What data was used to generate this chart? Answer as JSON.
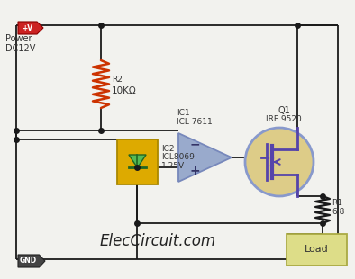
{
  "bg_color": "#f2f2ee",
  "line_color": "#1a1a1a",
  "title_text": "ElecCircuit.com",
  "title_fontsize": 12,
  "title_color": "#222222",
  "power_labels": [
    "Power",
    "DC12V"
  ],
  "vcc_badge_color": "#cc2222",
  "gnd_badge_color": "#444444",
  "r2_color": "#cc3300",
  "r2_labels": [
    "R2",
    "10KΩ"
  ],
  "ic2_color": "#ddaa00",
  "ic2_labels": [
    "IC2",
    "ICL8069",
    "1.25V"
  ],
  "ic2_diode_color": "#33aa33",
  "opamp_color": "#99aacc",
  "opamp_edge_color": "#7788bb",
  "opamp_labels": [
    "IC1",
    "ICL 7611"
  ],
  "q1_fill_color": "#ddcc88",
  "q1_edge_color": "#8899cc",
  "q1_mosfet_color": "#5544aa",
  "q1_labels": [
    "Q1",
    "IRF 9520"
  ],
  "r1_labels": [
    "R1",
    "6.8"
  ],
  "load_color": "#dddd88",
  "load_edge_color": "#aaaa44",
  "load_label": "Load"
}
